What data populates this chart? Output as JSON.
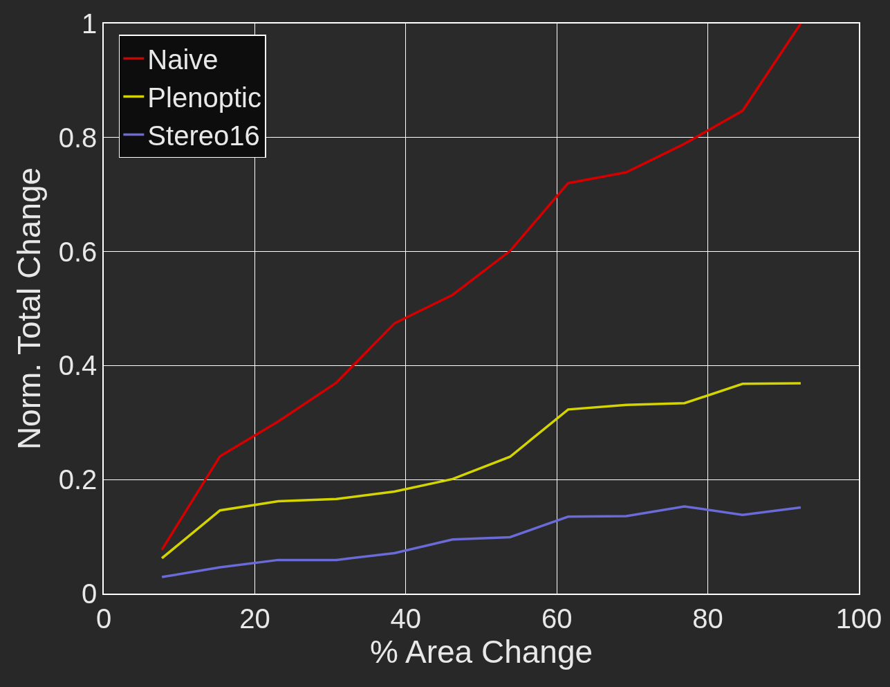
{
  "chart_data": {
    "type": "line",
    "xlabel": "% Area Change",
    "ylabel": "Norm. Total Change",
    "x": [
      7.7,
      15.4,
      23.1,
      30.8,
      38.5,
      46.2,
      53.8,
      61.5,
      69.2,
      76.9,
      84.6,
      92.3
    ],
    "series": [
      {
        "name": "Naive",
        "color": "#d40000",
        "values": [
          0.077,
          0.241,
          0.302,
          0.37,
          0.474,
          0.524,
          0.601,
          0.72,
          0.739,
          0.789,
          0.847,
          1.0
        ]
      },
      {
        "name": "Plenoptic",
        "color": "#d4d400",
        "values": [
          0.062,
          0.146,
          0.162,
          0.166,
          0.179,
          0.201,
          0.24,
          0.323,
          0.331,
          0.334,
          0.368,
          0.369
        ]
      },
      {
        "name": "Stereo16",
        "color": "#6a6ad8",
        "values": [
          0.029,
          0.046,
          0.059,
          0.059,
          0.071,
          0.095,
          0.099,
          0.135,
          0.136,
          0.153,
          0.138,
          0.151
        ]
      }
    ],
    "xlim": [
      0,
      100
    ],
    "xticks": [
      0,
      20,
      40,
      60,
      80,
      100
    ],
    "ylim": [
      0,
      1
    ],
    "yticks": [
      0,
      0.2,
      0.4,
      0.6,
      0.8,
      1
    ],
    "grid": true,
    "legend": "top left",
    "marker": "none",
    "line_style": "solid"
  }
}
